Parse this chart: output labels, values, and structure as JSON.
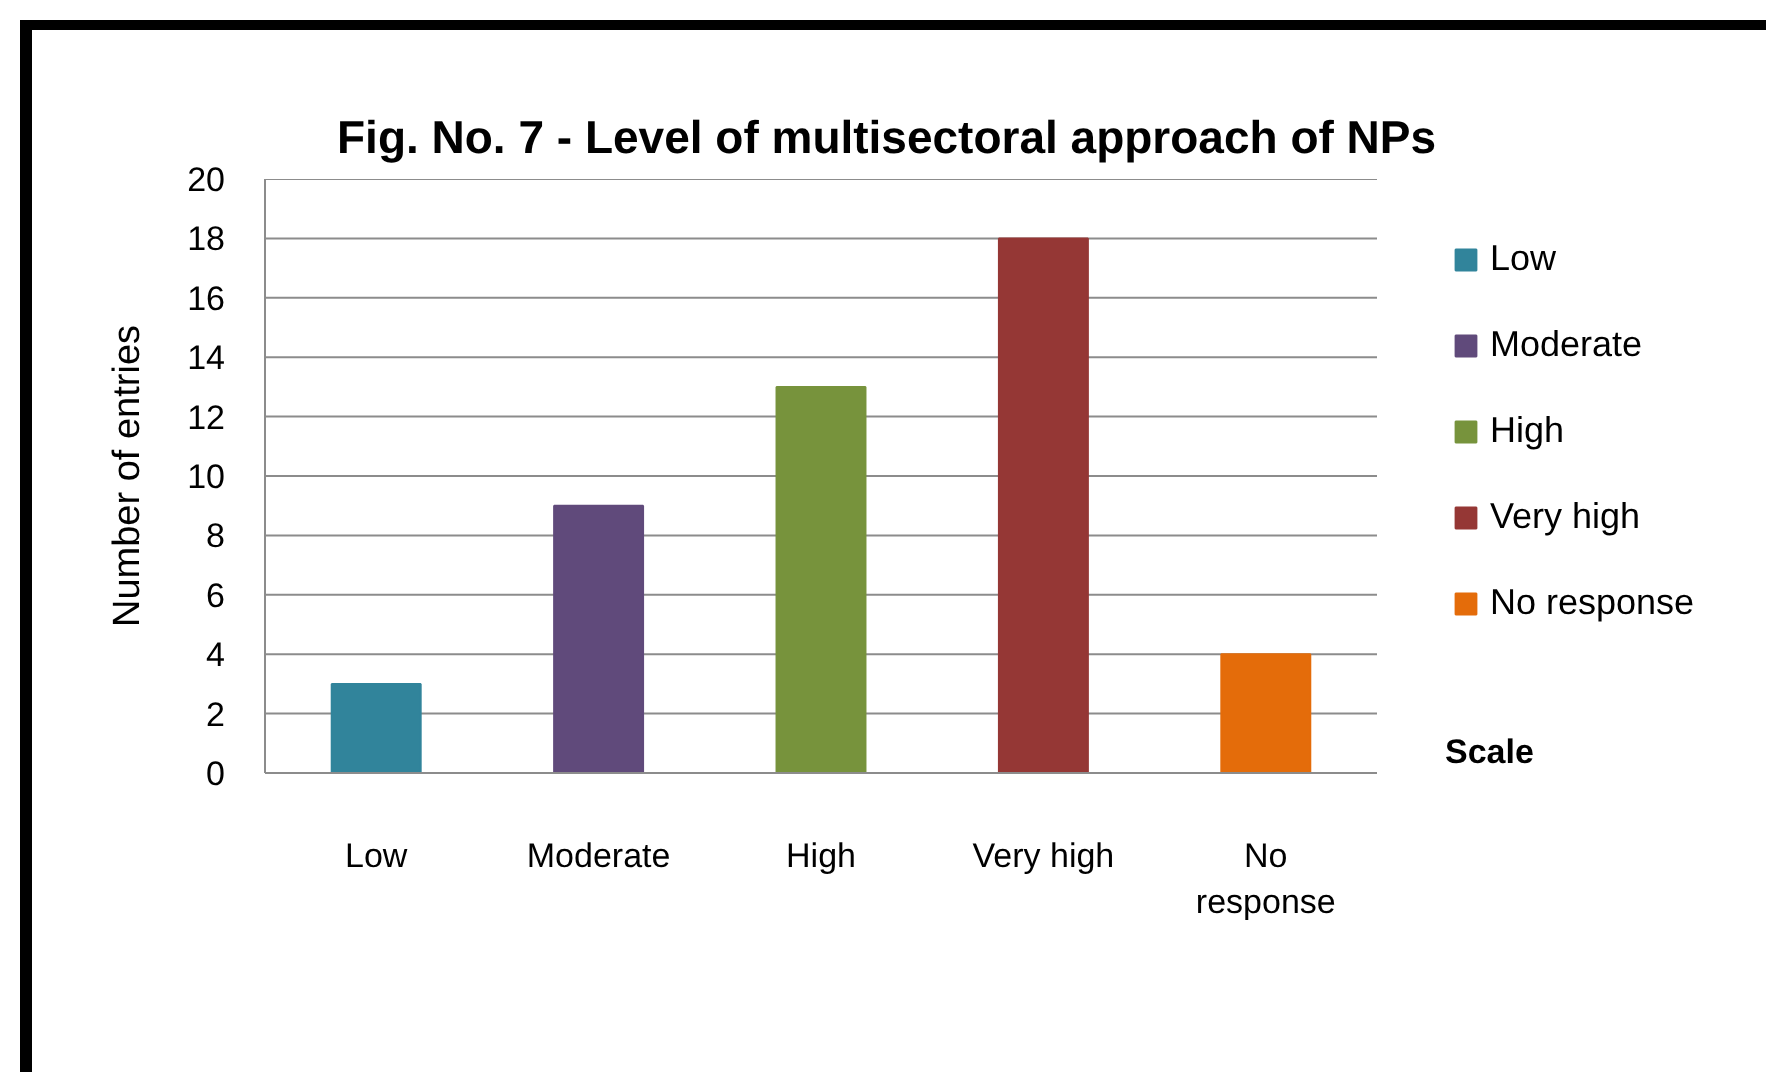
{
  "chart_data": {
    "type": "bar",
    "title": "Fig. No. 7 - Level of multisectoral approach of NPs",
    "xlabel": "Scale",
    "ylabel": "Number of entries",
    "categories": [
      "Low",
      "Moderate",
      "High",
      "Very high",
      "No response"
    ],
    "series": [
      {
        "name": "Low",
        "color": "#31849b",
        "values": [
          3,
          null,
          null,
          null,
          null
        ]
      },
      {
        "name": "Moderate",
        "color": "#604a7b",
        "values": [
          null,
          9,
          null,
          null,
          null
        ]
      },
      {
        "name": "High",
        "color": "#77933c",
        "values": [
          null,
          null,
          13,
          null,
          null
        ]
      },
      {
        "name": "Very high",
        "color": "#953735",
        "values": [
          null,
          null,
          null,
          18,
          null
        ]
      },
      {
        "name": "No response",
        "color": "#e46c0a",
        "values": [
          null,
          null,
          null,
          null,
          4
        ]
      }
    ],
    "ylim": [
      0,
      20
    ],
    "yticks": [
      0,
      2,
      4,
      6,
      8,
      10,
      12,
      14,
      16,
      18,
      20
    ],
    "grid": "y",
    "legend": "right"
  }
}
